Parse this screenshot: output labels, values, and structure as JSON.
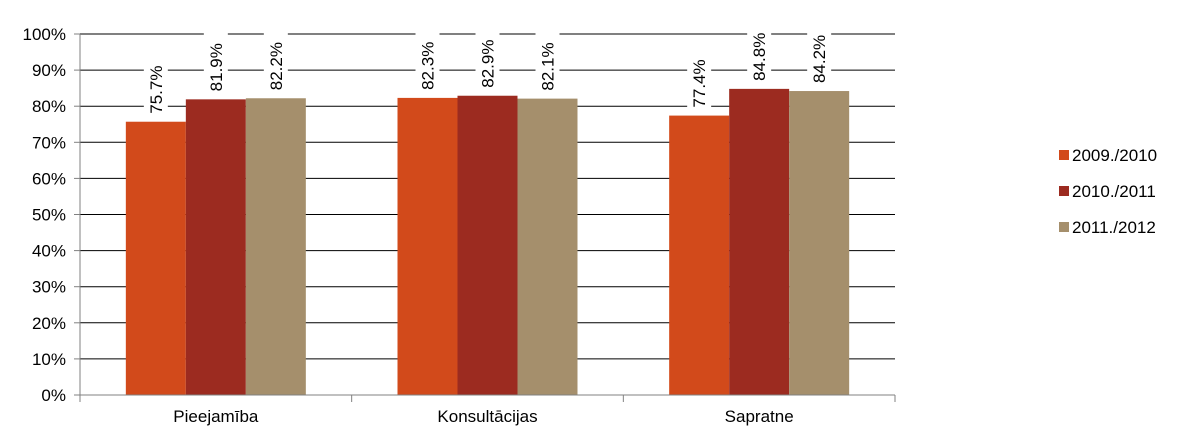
{
  "chart_data": {
    "type": "bar",
    "title": "",
    "xlabel": "",
    "ylabel": "",
    "ylim": [
      0,
      100
    ],
    "y_ticks": [
      "0%",
      "10%",
      "20%",
      "30%",
      "40%",
      "50%",
      "60%",
      "70%",
      "80%",
      "90%",
      "100%"
    ],
    "y_tick_values": [
      0,
      10,
      20,
      30,
      40,
      50,
      60,
      70,
      80,
      90,
      100
    ],
    "grid": true,
    "legend_position": "right",
    "categories": [
      "Pieejamība",
      "Konsultācijas",
      "Sapratne"
    ],
    "series": [
      {
        "name": "2009./2010",
        "values": [
          75.7,
          82.3,
          77.4
        ],
        "labels": [
          "75.7%",
          "82.3%",
          "77.4%"
        ],
        "color": "#D24A1B"
      },
      {
        "name": "2010./2011",
        "values": [
          81.9,
          82.9,
          84.8
        ],
        "labels": [
          "81.9%",
          "82.9%",
          "84.8%"
        ],
        "color": "#9C2B20"
      },
      {
        "name": "2011./2012",
        "values": [
          82.2,
          82.1,
          84.2
        ],
        "labels": [
          "82.2%",
          "82.1%",
          "84.2%"
        ],
        "color": "#A58F6C"
      }
    ],
    "gridline_color": "#000000",
    "axis_color": "#808080"
  }
}
